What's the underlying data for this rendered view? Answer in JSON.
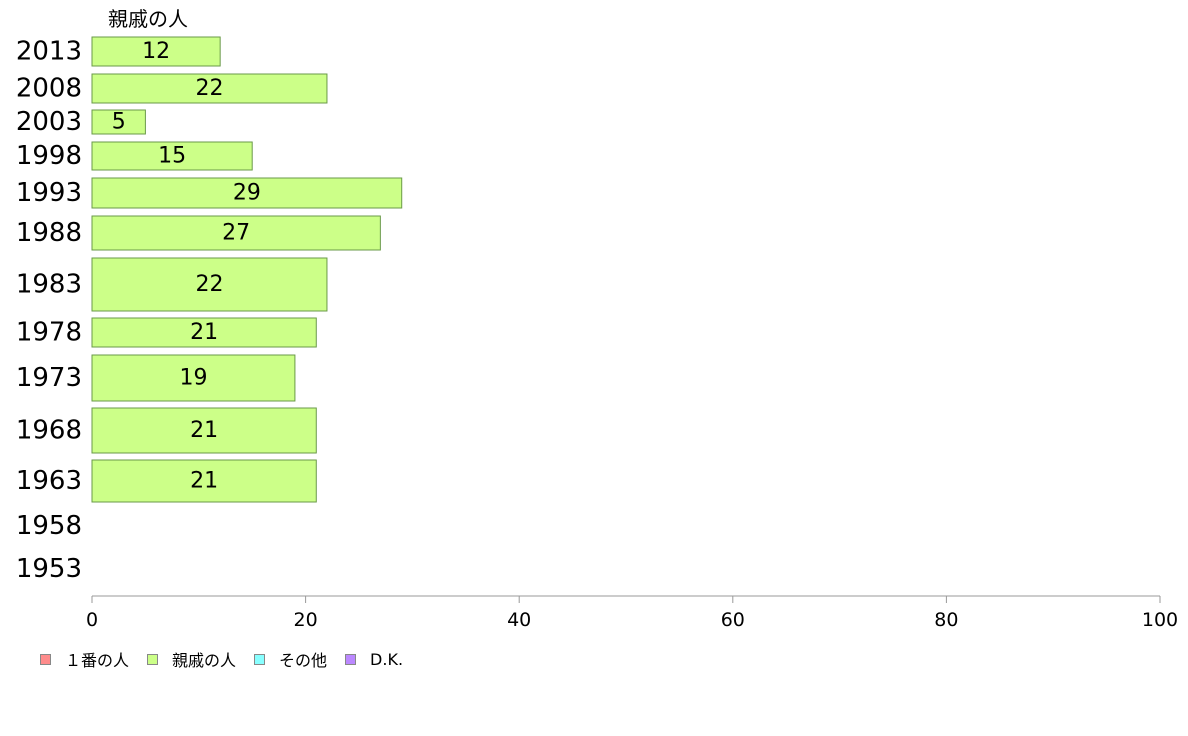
{
  "chart_data": {
    "type": "bar",
    "orientation": "horizontal",
    "title": "親戚の人",
    "categories": [
      "2013",
      "2008",
      "2003",
      "1998",
      "1993",
      "1988",
      "1983",
      "1978",
      "1973",
      "1968",
      "1963",
      "1958",
      "1953"
    ],
    "series": [
      {
        "name": "親戚の人",
        "color": "#ccff88",
        "values": [
          12,
          22,
          5,
          15,
          29,
          27,
          22,
          21,
          19,
          21,
          21,
          null,
          null
        ],
        "labels": [
          "12",
          "22",
          "5",
          "15",
          "29",
          "27",
          "22",
          "21",
          "19",
          "21",
          "21",
          "",
          ""
        ]
      }
    ],
    "xlim": [
      0,
      100
    ],
    "xticks": [
      "0",
      "20",
      "40",
      "60",
      "80",
      "100"
    ],
    "xlabel": "",
    "ylabel": "",
    "grid": false,
    "legend_position": "bottom-left"
  },
  "legend": [
    {
      "label": "１番の人",
      "color": "#ff8c8c"
    },
    {
      "label": "親戚の人",
      "color": "#ccff88"
    },
    {
      "label": "その他",
      "color": "#88ffff"
    },
    {
      "label": "D.K.",
      "color": "#bb88ff"
    }
  ]
}
